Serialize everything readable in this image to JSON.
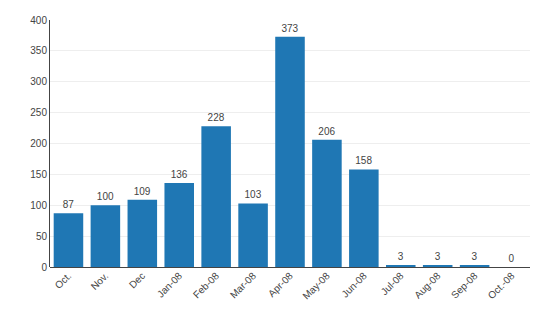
{
  "chart_data": {
    "type": "bar",
    "categories": [
      "Oct.",
      "Nov.",
      "Dec",
      "Jan-08",
      "Feb-08",
      "Mar-08",
      "Apr-08",
      "May-08",
      "Jun-08",
      "Jul-08",
      "Aug-08",
      "Sep-08",
      "Oct.-08"
    ],
    "values": [
      87,
      100,
      109,
      136,
      228,
      103,
      373,
      206,
      158,
      3,
      3,
      3,
      0
    ],
    "ylim": [
      0,
      400
    ],
    "yticks": [
      0,
      50,
      100,
      150,
      200,
      250,
      300,
      350,
      400
    ],
    "grid": true,
    "data_labels": true
  }
}
